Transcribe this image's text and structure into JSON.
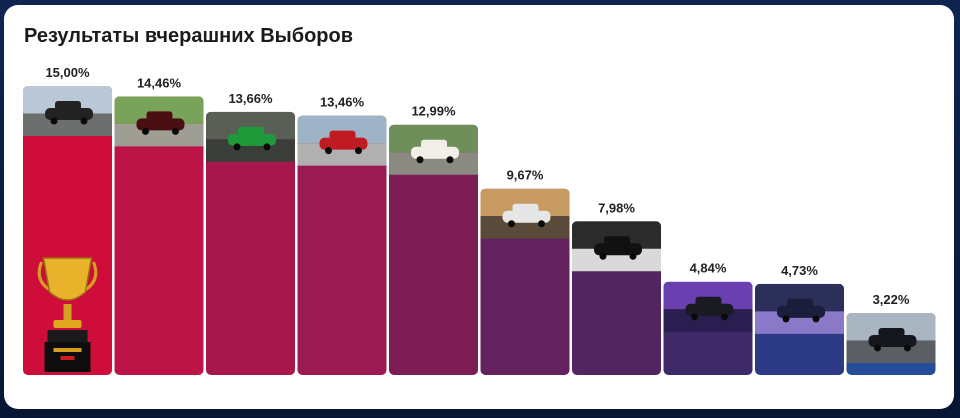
{
  "chart_data": {
    "type": "bar",
    "title": "Результаты вчерашних Выборов",
    "values_display": [
      "15,00%",
      "14,46%",
      "13,66%",
      "13,46%",
      "12,99%",
      "9,67%",
      "7,98%",
      "4,84%",
      "4,73%",
      "3,22%"
    ],
    "values": [
      15.0,
      14.46,
      13.66,
      13.46,
      12.99,
      9.67,
      7.98,
      4.84,
      4.73,
      3.22
    ],
    "ylim": [
      0,
      15
    ],
    "colors": [
      "#cf0d3a",
      "#bd1448",
      "#a8174c",
      "#9a1a52",
      "#7d1d55",
      "#63215d",
      "#522460",
      "#3d2a66",
      "#2d3a86",
      "#244c99"
    ],
    "photo_themes": [
      "dark-sedan-street",
      "convertible-park",
      "green-sportscar",
      "red-coupe",
      "white-sedan-trees",
      "silver-sedan-sunset",
      "black-sedan-garage",
      "purple-smoke-car",
      "purple-sportscar",
      "dark-sedan-embankment"
    ],
    "winner_icon": "trophy-icon",
    "grid": false,
    "legend": "none"
  }
}
